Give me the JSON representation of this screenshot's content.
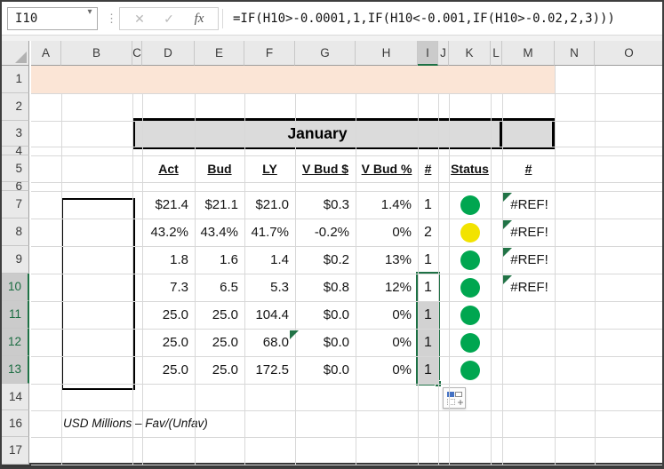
{
  "name_box": {
    "value": "I10",
    "dropdown_icon": "▾"
  },
  "formula_bar": {
    "separator_dots": "⋮",
    "cancel": "✕",
    "confirm": "✓",
    "fx": "fx",
    "formula": "=IF(H10>-0.0001,1,IF(H10<-0.001,IF(H10>-0.02,2,3)))"
  },
  "column_headers": [
    "A",
    "B",
    "C",
    "D",
    "E",
    "F",
    "G",
    "H",
    "I",
    "J",
    "K",
    "L",
    "M",
    "N",
    "O"
  ],
  "active_column": "I",
  "row_headers": [
    "1",
    "2",
    "3",
    "4",
    "5",
    "6",
    "7",
    "8",
    "9",
    "10",
    "11",
    "12",
    "13",
    "14",
    "16",
    "17"
  ],
  "active_rows": [
    "10",
    "11",
    "12",
    "13"
  ],
  "month_banner": "January",
  "table_headers": [
    "Act",
    "Bud",
    "LY",
    "V Bud $",
    "V Bud %",
    "#",
    "Status",
    "#"
  ],
  "data_rows": [
    {
      "excel_row": "7",
      "act": "$21.4",
      "bud": "$21.1",
      "ly": "$21.0",
      "v_bud_usd": "$0.3",
      "v_bud_pct": "1.4%",
      "rank": "1",
      "status": "green",
      "ref": "#REF!",
      "ref_flag": true,
      "active": false,
      "selected": false,
      "vbud_flag": false
    },
    {
      "excel_row": "8",
      "act": "43.2%",
      "bud": "43.4%",
      "ly": "41.7%",
      "v_bud_usd": "-0.2%",
      "v_bud_pct": "0%",
      "rank": "2",
      "status": "yellow",
      "ref": "#REF!",
      "ref_flag": true,
      "active": false,
      "selected": false,
      "vbud_flag": false
    },
    {
      "excel_row": "9",
      "act": "1.8",
      "bud": "1.6",
      "ly": "1.4",
      "v_bud_usd": "$0.2",
      "v_bud_pct": "13%",
      "rank": "1",
      "status": "green",
      "ref": "#REF!",
      "ref_flag": true,
      "active": false,
      "selected": false,
      "vbud_flag": false
    },
    {
      "excel_row": "10",
      "act": "7.3",
      "bud": "6.5",
      "ly": "5.3",
      "v_bud_usd": "$0.8",
      "v_bud_pct": "12%",
      "rank": "1",
      "status": "green",
      "ref": "#REF!",
      "ref_flag": true,
      "active": true,
      "selected": false,
      "vbud_flag": false
    },
    {
      "excel_row": "11",
      "act": "25.0",
      "bud": "25.0",
      "ly": "104.4",
      "v_bud_usd": "$0.0",
      "v_bud_pct": "0%",
      "rank": "1",
      "status": "green",
      "ref": "",
      "ref_flag": false,
      "active": false,
      "selected": true,
      "vbud_flag": false
    },
    {
      "excel_row": "12",
      "act": "25.0",
      "bud": "25.0",
      "ly": "68.0",
      "v_bud_usd": "$0.0",
      "v_bud_pct": "0%",
      "rank": "1",
      "status": "green",
      "ref": "",
      "ref_flag": false,
      "active": false,
      "selected": true,
      "vbud_flag": true
    },
    {
      "excel_row": "13",
      "act": "25.0",
      "bud": "25.0",
      "ly": "172.5",
      "v_bud_usd": "$0.0",
      "v_bud_pct": "0%",
      "rank": "1",
      "status": "green",
      "ref": "",
      "ref_flag": false,
      "active": false,
      "selected": true,
      "vbud_flag": false
    }
  ],
  "footnote": "USD Millions – Fav/(Unfav)",
  "colors": {
    "status_green": "#00A650",
    "status_yellow": "#F2E300",
    "selection_green": "#1E7145",
    "error_flag_green": "#217346",
    "row1_fill_peach": "#FBE5D6",
    "banner_gray": "#DBDBDB"
  }
}
